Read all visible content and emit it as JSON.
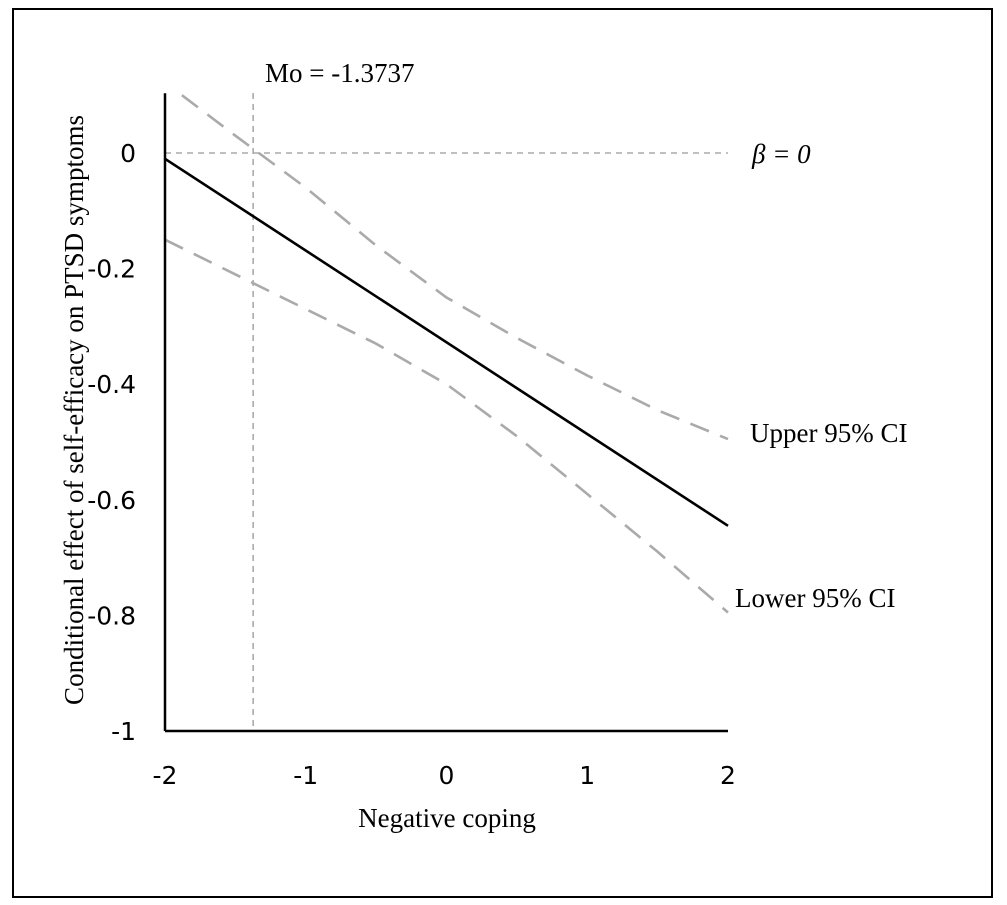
{
  "chart_data": {
    "type": "line",
    "xlabel": "Negative coping",
    "ylabel": "Conditional effect of self-efficacy on PTSD symptoms",
    "xlim": [
      -2,
      2
    ],
    "ylim": [
      -1,
      0.1
    ],
    "x_ticks": [
      "-2",
      "-1",
      "0",
      "1",
      "2"
    ],
    "y_ticks": [
      "0",
      "-0.2",
      "-0.4",
      "-0.6",
      "-0.8",
      "-1"
    ],
    "grid": false,
    "series": [
      {
        "name": "",
        "style": "solid",
        "color": "#000000",
        "x": [
          -2,
          2
        ],
        "y": [
          -0.01,
          -0.645
        ]
      },
      {
        "name": "Upper 95% CI",
        "style": "dashed",
        "color": "#aaaaaa",
        "x": [
          -1.88,
          -1.5,
          -1,
          -0.5,
          0,
          0.5,
          1,
          1.5,
          2
        ],
        "y": [
          0.1,
          0.03,
          -0.06,
          -0.16,
          -0.25,
          -0.32,
          -0.385,
          -0.445,
          -0.495
        ]
      },
      {
        "name": "Lower 95% CI",
        "style": "dashed",
        "color": "#aaaaaa",
        "x": [
          -2,
          -1.5,
          -1,
          -0.5,
          0,
          0.5,
          1,
          1.5,
          2
        ],
        "y": [
          -0.15,
          -0.21,
          -0.27,
          -0.33,
          -0.4,
          -0.49,
          -0.59,
          -0.69,
          -0.795
        ]
      }
    ],
    "reference_lines": [
      {
        "orientation": "horizontal",
        "value": 0,
        "label": "β = 0"
      },
      {
        "orientation": "vertical",
        "value": -1.3737,
        "label": "Mo = -1.3737"
      }
    ]
  }
}
